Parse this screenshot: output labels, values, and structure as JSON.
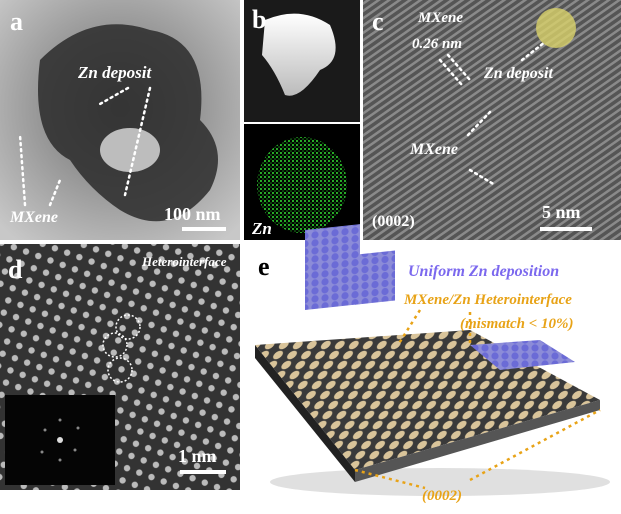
{
  "panels": {
    "a": {
      "label": "a",
      "zn_deposit": "Zn deposit",
      "mxene": "MXene",
      "scale": "100 nm"
    },
    "b": {
      "label": "b",
      "element": "Zn"
    },
    "c": {
      "label": "c",
      "mxene_top": "MXene",
      "spacing": "0.26 nm",
      "zn_deposit": "Zn deposit",
      "mxene": "MXene",
      "plane": "(0002)",
      "scale": "5 nm"
    },
    "d": {
      "label": "d",
      "interface": "Heterointerface",
      "scale": "1 nm"
    },
    "e": {
      "label": "e",
      "uniform": "Uniform Zn deposition",
      "heterointerface": "MXene/Zn Heterointerface",
      "mismatch": "(mismatch < 10%)",
      "plane": "(0002)"
    }
  }
}
